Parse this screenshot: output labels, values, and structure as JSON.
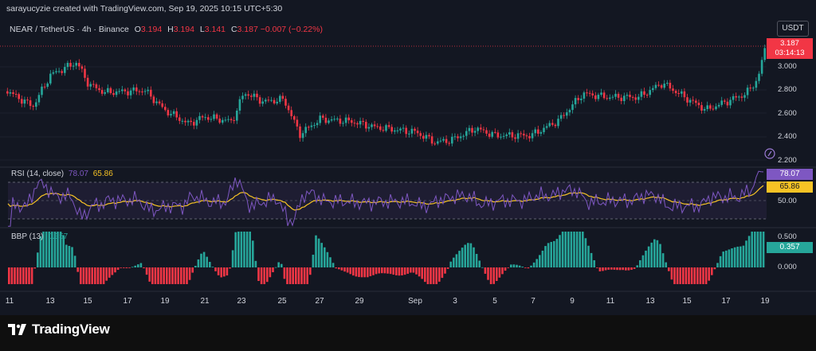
{
  "caption": "sarayucyzie created with TradingView.com, Sep 19, 2025 10:15 UTC+5:30",
  "symbol": {
    "name": "NEAR / TetherUS · 4h · Binance",
    "o_label": "O",
    "o": "3.194",
    "h_label": "H",
    "h": "3.194",
    "l_label": "L",
    "l": "3.141",
    "c_label": "C",
    "c": "3.187",
    "change": "−0.007 (−0.22%)"
  },
  "currency_button": "USDT",
  "price_axis": [
    "3.000",
    "2.800",
    "2.600",
    "2.400",
    "2.200"
  ],
  "last_price": {
    "value": "3.187",
    "countdown": "03:14:13"
  },
  "rsi": {
    "label": "RSI (14, close)",
    "value": "78.07",
    "ma_value": "65.86",
    "axis_label": "50.00",
    "line_color": "#7e57c2",
    "ma_color": "#f7c325"
  },
  "bbp": {
    "label": "BBP (13)",
    "value": "0.357",
    "axis": [
      "0.500",
      "0.000"
    ],
    "up_color": "#26a69a",
    "down_color": "#f23645"
  },
  "dates": [
    "11",
    "13",
    "15",
    "17",
    "19",
    "21",
    "23",
    "25",
    "27",
    "29",
    "Sep",
    "3",
    "5",
    "7",
    "9",
    "11",
    "13",
    "15",
    "17",
    "19"
  ],
  "logo_text": "TradingView",
  "icons": {
    "logo": "tradingview-logo-icon",
    "alert": "alert-marker-icon"
  },
  "colors": {
    "up": "#26a69a",
    "down": "#f23645",
    "background": "#131722"
  }
}
